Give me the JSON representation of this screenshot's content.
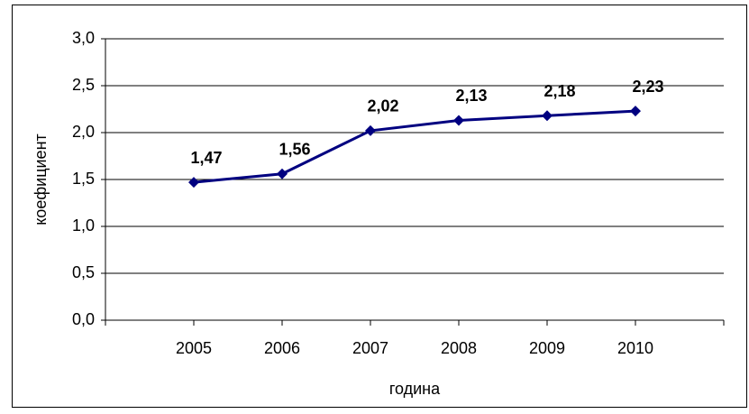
{
  "chart_data": {
    "type": "line",
    "x_label": "година",
    "y_label": "коефициент",
    "categories": [
      "2005",
      "2006",
      "2007",
      "2008",
      "2009",
      "2010"
    ],
    "values": [
      1.47,
      1.56,
      2.02,
      2.13,
      2.18,
      2.23
    ],
    "value_labels": [
      "1,47",
      "1,56",
      "2,02",
      "2,13",
      "2,18",
      "2,23"
    ],
    "color": "#000080",
    "ylim": [
      0,
      3
    ],
    "yticks": [
      {
        "value": 0,
        "label": "0,0"
      },
      {
        "value": 0.5,
        "label": "0,5"
      },
      {
        "value": 1,
        "label": "1,0"
      },
      {
        "value": 1.5,
        "label": "1,5"
      },
      {
        "value": 2,
        "label": "2,0"
      },
      {
        "value": 2.5,
        "label": "2,5"
      },
      {
        "value": 3,
        "label": "3,0"
      }
    ],
    "grid": true
  }
}
